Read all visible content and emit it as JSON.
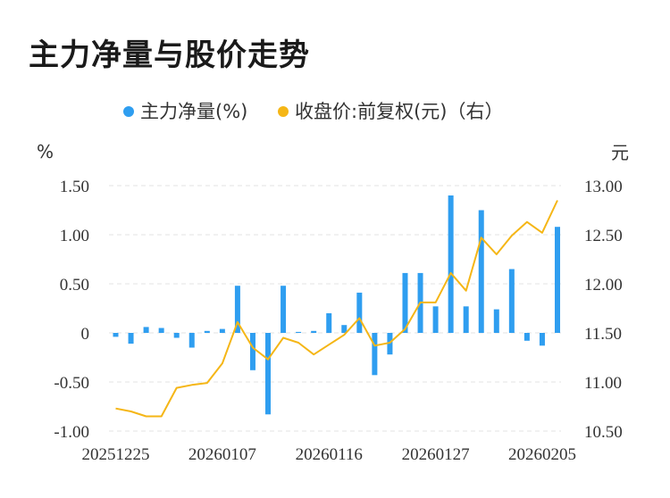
{
  "title": "主力净量与股价走势",
  "chart_data": {
    "type": "bar+line",
    "legend": {
      "placement": "top-center",
      "entries": [
        {
          "name": "主力净量(%)",
          "color": "#2f9ef0",
          "marker": "circle"
        },
        {
          "name": "收盘价:前复权(元)（右）",
          "color": "#f5b616",
          "marker": "circle"
        }
      ]
    },
    "y_left": {
      "unit": "%",
      "ylim": [
        -1.0,
        1.5
      ],
      "ticks": [
        1.5,
        1.0,
        0.5,
        0,
        -0.5,
        -1.0
      ],
      "tick_labels": [
        "1.50",
        "1.00",
        "0.50",
        "0",
        "-0.50",
        "-1.00"
      ]
    },
    "y_right": {
      "unit": "元",
      "ylim": [
        10.5,
        13.0
      ],
      "ticks": [
        13.0,
        12.5,
        12.0,
        11.5,
        11.0,
        10.5
      ],
      "tick_labels": [
        "13.00",
        "12.50",
        "12.00",
        "11.50",
        "11.00",
        "10.50"
      ]
    },
    "x_tick_labels": [
      {
        "index": 0,
        "label": "20251225"
      },
      {
        "index": 7,
        "label": "20260107"
      },
      {
        "index": 14,
        "label": "20260116"
      },
      {
        "index": 21,
        "label": "20260127"
      },
      {
        "index": 28,
        "label": "20260205"
      }
    ],
    "grid": "horizontal dashed",
    "series": [
      {
        "name": "主力净量(%)",
        "type": "bar",
        "axis": "left",
        "color": "#2f9ef0",
        "values": [
          -0.04,
          -0.11,
          0.06,
          0.05,
          -0.05,
          -0.15,
          0.02,
          0.04,
          0.48,
          -0.38,
          -0.83,
          0.48,
          0.01,
          0.02,
          0.2,
          0.08,
          0.41,
          -0.43,
          -0.22,
          0.61,
          0.61,
          0.27,
          1.4,
          0.27,
          1.25,
          0.24,
          0.65,
          -0.08,
          -0.13,
          1.08
        ]
      },
      {
        "name": "收盘价:前复权(元)",
        "type": "line",
        "axis": "right",
        "color": "#f5b616",
        "values": [
          10.73,
          10.7,
          10.65,
          10.65,
          10.94,
          10.97,
          10.99,
          11.19,
          11.61,
          11.35,
          11.23,
          11.45,
          11.4,
          11.28,
          11.38,
          11.48,
          11.65,
          11.37,
          11.4,
          11.54,
          11.81,
          11.81,
          12.11,
          11.93,
          12.47,
          12.3,
          12.49,
          12.63,
          12.52,
          12.85
        ]
      }
    ]
  }
}
